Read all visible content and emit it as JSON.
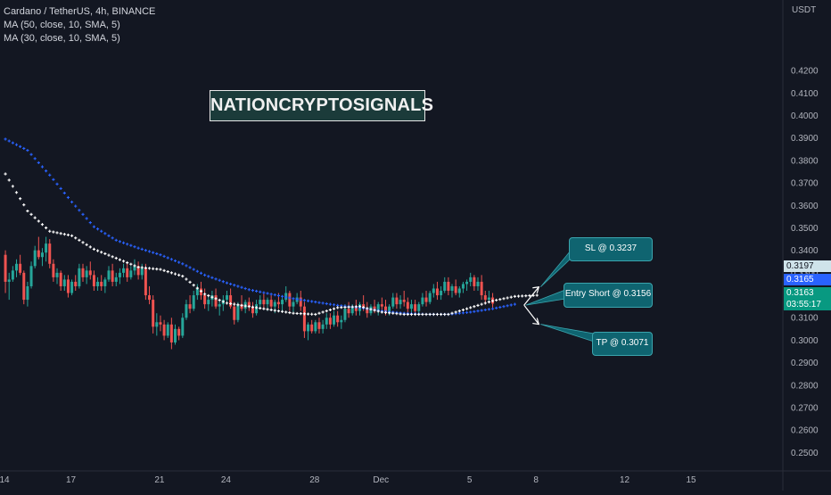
{
  "legend": {
    "symbol_line": "Cardano / TetherUS, 4h, BINANCE",
    "ma1_line": "MA (50, close, 10, SMA, 5)",
    "ma2_line": "MA (30, close, 10, SMA, 5)"
  },
  "watermark": "NATIONCRYPTOSIGNALS",
  "callouts": {
    "sl": "SL @ 0.3237",
    "entry": "Entry Short @ 0.3156",
    "tp": "TP @ 0.3071"
  },
  "price_tags": {
    "ma_white": "0.3197",
    "ma_blue": "0.3165",
    "last_price": "0.3163",
    "countdown": "03:55:17"
  },
  "colors": {
    "background": "#131722",
    "bull": "#26a69a",
    "bear": "#ef5350",
    "ma_blue": "#2962ff",
    "ma_white": "#ffffff",
    "callout": "#0f6470"
  },
  "chart_data": {
    "type": "line",
    "title": "Cardano / TetherUS, 4h, BINANCE",
    "y_unit": "USDT",
    "ylim": [
      0.245,
      0.4395
    ],
    "yticks": [
      0.42,
      0.41,
      0.4,
      0.39,
      0.38,
      0.37,
      0.36,
      0.35,
      0.34,
      0.33,
      0.32,
      0.31,
      0.3,
      0.29,
      0.28,
      0.27,
      0.26,
      0.25
    ],
    "ytick_labels": [
      "0.4200",
      "0.4100",
      "0.4000",
      "0.3900",
      "0.3800",
      "0.3700",
      "0.3600",
      "0.3500",
      "0.3400",
      "0.3300",
      "0.3200",
      "0.3100",
      "0.3000",
      "0.2900",
      "0.2800",
      "0.2700",
      "0.2600",
      "0.2500"
    ],
    "xticks": [
      {
        "label": "14",
        "bar": 0
      },
      {
        "label": "17",
        "bar": 18
      },
      {
        "label": "21",
        "bar": 42
      },
      {
        "label": "24",
        "bar": 60
      },
      {
        "label": "28",
        "bar": 84
      },
      {
        "label": "Dec",
        "bar": 102
      },
      {
        "label": "5",
        "bar": 126
      },
      {
        "label": "8",
        "bar": 144
      },
      {
        "label": "12",
        "bar": 168
      },
      {
        "label": "15",
        "bar": 186
      }
    ],
    "series": [
      {
        "name": "MA (50, close, 10, SMA, 5)",
        "color": "#2962ff",
        "points": [
          [
            0,
            0.3895
          ],
          [
            6,
            0.3845
          ],
          [
            12,
            0.3735
          ],
          [
            18,
            0.3615
          ],
          [
            24,
            0.3505
          ],
          [
            30,
            0.3445
          ],
          [
            36,
            0.341
          ],
          [
            42,
            0.338
          ],
          [
            48,
            0.334
          ],
          [
            54,
            0.329
          ],
          [
            60,
            0.3255
          ],
          [
            66,
            0.3225
          ],
          [
            72,
            0.3205
          ],
          [
            78,
            0.3185
          ],
          [
            84,
            0.317
          ],
          [
            90,
            0.3155
          ],
          [
            96,
            0.3145
          ],
          [
            102,
            0.313
          ],
          [
            108,
            0.312
          ],
          [
            114,
            0.3115
          ],
          [
            120,
            0.3115
          ],
          [
            126,
            0.3125
          ],
          [
            132,
            0.314
          ],
          [
            138,
            0.316
          ]
        ]
      },
      {
        "name": "MA (30, close, 10, SMA, 5)",
        "color": "#ffffff",
        "points": [
          [
            0,
            0.374
          ],
          [
            6,
            0.3575
          ],
          [
            12,
            0.3485
          ],
          [
            18,
            0.3465
          ],
          [
            24,
            0.3405
          ],
          [
            30,
            0.3365
          ],
          [
            36,
            0.3325
          ],
          [
            42,
            0.3315
          ],
          [
            48,
            0.3285
          ],
          [
            54,
            0.3205
          ],
          [
            60,
            0.3165
          ],
          [
            66,
            0.315
          ],
          [
            72,
            0.3135
          ],
          [
            78,
            0.312
          ],
          [
            84,
            0.3115
          ],
          [
            90,
            0.3145
          ],
          [
            96,
            0.315
          ],
          [
            102,
            0.3125
          ],
          [
            108,
            0.3115
          ],
          [
            114,
            0.3115
          ],
          [
            120,
            0.3115
          ],
          [
            126,
            0.3145
          ],
          [
            132,
            0.3175
          ],
          [
            138,
            0.3195
          ],
          [
            144,
            0.32
          ]
        ]
      }
    ],
    "candles": [
      [
        0.338,
        0.34,
        0.321,
        0.326
      ],
      [
        0.326,
        0.33,
        0.318,
        0.327
      ],
      [
        0.327,
        0.333,
        0.326,
        0.331
      ],
      [
        0.331,
        0.336,
        0.328,
        0.334
      ],
      [
        0.334,
        0.338,
        0.329,
        0.33
      ],
      [
        0.33,
        0.331,
        0.316,
        0.318
      ],
      [
        0.318,
        0.326,
        0.315,
        0.324
      ],
      [
        0.324,
        0.335,
        0.323,
        0.333
      ],
      [
        0.333,
        0.342,
        0.332,
        0.34
      ],
      [
        0.34,
        0.346,
        0.336,
        0.337
      ],
      [
        0.337,
        0.341,
        0.333,
        0.339
      ],
      [
        0.339,
        0.346,
        0.335,
        0.343
      ],
      [
        0.343,
        0.345,
        0.332,
        0.334
      ],
      [
        0.334,
        0.336,
        0.326,
        0.328
      ],
      [
        0.328,
        0.332,
        0.325,
        0.33
      ],
      [
        0.33,
        0.331,
        0.322,
        0.324
      ],
      [
        0.324,
        0.329,
        0.322,
        0.327
      ],
      [
        0.327,
        0.329,
        0.319,
        0.321
      ],
      [
        0.321,
        0.327,
        0.32,
        0.326
      ],
      [
        0.326,
        0.329,
        0.322,
        0.324
      ],
      [
        0.324,
        0.334,
        0.323,
        0.332
      ],
      [
        0.332,
        0.334,
        0.326,
        0.328
      ],
      [
        0.328,
        0.333,
        0.325,
        0.331
      ],
      [
        0.331,
        0.335,
        0.327,
        0.329
      ],
      [
        0.329,
        0.331,
        0.322,
        0.324
      ],
      [
        0.324,
        0.328,
        0.322,
        0.326
      ],
      [
        0.326,
        0.329,
        0.322,
        0.324
      ],
      [
        0.324,
        0.328,
        0.321,
        0.327
      ],
      [
        0.327,
        0.333,
        0.326,
        0.331
      ],
      [
        0.331,
        0.334,
        0.324,
        0.326
      ],
      [
        0.326,
        0.33,
        0.324,
        0.328
      ],
      [
        0.328,
        0.332,
        0.325,
        0.33
      ],
      [
        0.33,
        0.334,
        0.328,
        0.332
      ],
      [
        0.332,
        0.334,
        0.326,
        0.328
      ],
      [
        0.328,
        0.333,
        0.327,
        0.331
      ],
      [
        0.331,
        0.336,
        0.329,
        0.333
      ],
      [
        0.333,
        0.335,
        0.327,
        0.329
      ],
      [
        0.329,
        0.334,
        0.327,
        0.332
      ],
      [
        0.332,
        0.334,
        0.318,
        0.32
      ],
      [
        0.32,
        0.324,
        0.316,
        0.318
      ],
      [
        0.318,
        0.32,
        0.303,
        0.306
      ],
      [
        0.306,
        0.312,
        0.302,
        0.308
      ],
      [
        0.308,
        0.311,
        0.304,
        0.307
      ],
      [
        0.307,
        0.309,
        0.3,
        0.302
      ],
      [
        0.302,
        0.308,
        0.301,
        0.307
      ],
      [
        0.307,
        0.31,
        0.296,
        0.299
      ],
      [
        0.299,
        0.307,
        0.298,
        0.305
      ],
      [
        0.305,
        0.306,
        0.3,
        0.302
      ],
      [
        0.302,
        0.312,
        0.301,
        0.31
      ],
      [
        0.31,
        0.318,
        0.309,
        0.316
      ],
      [
        0.316,
        0.32,
        0.312,
        0.314
      ],
      [
        0.314,
        0.322,
        0.313,
        0.32
      ],
      [
        0.32,
        0.325,
        0.318,
        0.323
      ],
      [
        0.323,
        0.326,
        0.318,
        0.32
      ],
      [
        0.32,
        0.323,
        0.314,
        0.316
      ],
      [
        0.316,
        0.32,
        0.313,
        0.318
      ],
      [
        0.318,
        0.322,
        0.315,
        0.32
      ],
      [
        0.32,
        0.323,
        0.314,
        0.315
      ],
      [
        0.315,
        0.318,
        0.311,
        0.316
      ],
      [
        0.316,
        0.32,
        0.313,
        0.318
      ],
      [
        0.318,
        0.322,
        0.317,
        0.32
      ],
      [
        0.32,
        0.323,
        0.314,
        0.315
      ],
      [
        0.315,
        0.317,
        0.307,
        0.309
      ],
      [
        0.309,
        0.317,
        0.308,
        0.316
      ],
      [
        0.316,
        0.32,
        0.313,
        0.314
      ],
      [
        0.314,
        0.318,
        0.312,
        0.317
      ],
      [
        0.317,
        0.319,
        0.313,
        0.315
      ],
      [
        0.315,
        0.317,
        0.31,
        0.312
      ],
      [
        0.312,
        0.318,
        0.311,
        0.316
      ],
      [
        0.316,
        0.32,
        0.314,
        0.318
      ],
      [
        0.318,
        0.321,
        0.314,
        0.316
      ],
      [
        0.316,
        0.319,
        0.313,
        0.318
      ],
      [
        0.318,
        0.32,
        0.314,
        0.315
      ],
      [
        0.315,
        0.318,
        0.312,
        0.317
      ],
      [
        0.317,
        0.321,
        0.314,
        0.316
      ],
      [
        0.316,
        0.319,
        0.313,
        0.318
      ],
      [
        0.318,
        0.324,
        0.317,
        0.321
      ],
      [
        0.321,
        0.322,
        0.313,
        0.315
      ],
      [
        0.315,
        0.318,
        0.312,
        0.317
      ],
      [
        0.317,
        0.321,
        0.316,
        0.319
      ],
      [
        0.319,
        0.322,
        0.313,
        0.315
      ],
      [
        0.315,
        0.317,
        0.301,
        0.304
      ],
      [
        0.304,
        0.308,
        0.3,
        0.307
      ],
      [
        0.307,
        0.309,
        0.303,
        0.304
      ],
      [
        0.304,
        0.309,
        0.303,
        0.308
      ],
      [
        0.308,
        0.31,
        0.303,
        0.305
      ],
      [
        0.305,
        0.309,
        0.303,
        0.307
      ],
      [
        0.307,
        0.312,
        0.305,
        0.31
      ],
      [
        0.31,
        0.312,
        0.305,
        0.307
      ],
      [
        0.307,
        0.313,
        0.306,
        0.311
      ],
      [
        0.311,
        0.313,
        0.306,
        0.308
      ],
      [
        0.308,
        0.311,
        0.305,
        0.309
      ],
      [
        0.309,
        0.316,
        0.308,
        0.314
      ],
      [
        0.314,
        0.317,
        0.31,
        0.312
      ],
      [
        0.312,
        0.316,
        0.311,
        0.315
      ],
      [
        0.315,
        0.318,
        0.311,
        0.313
      ],
      [
        0.313,
        0.317,
        0.311,
        0.316
      ],
      [
        0.316,
        0.32,
        0.313,
        0.314
      ],
      [
        0.314,
        0.317,
        0.31,
        0.312
      ],
      [
        0.312,
        0.316,
        0.311,
        0.315
      ],
      [
        0.315,
        0.318,
        0.312,
        0.313
      ],
      [
        0.313,
        0.317,
        0.311,
        0.316
      ],
      [
        0.316,
        0.319,
        0.313,
        0.315
      ],
      [
        0.315,
        0.318,
        0.311,
        0.312
      ],
      [
        0.312,
        0.316,
        0.311,
        0.315
      ],
      [
        0.315,
        0.321,
        0.314,
        0.319
      ],
      [
        0.319,
        0.321,
        0.314,
        0.316
      ],
      [
        0.316,
        0.32,
        0.314,
        0.318
      ],
      [
        0.318,
        0.322,
        0.315,
        0.317
      ],
      [
        0.317,
        0.319,
        0.312,
        0.314
      ],
      [
        0.314,
        0.318,
        0.312,
        0.316
      ],
      [
        0.316,
        0.318,
        0.311,
        0.313
      ],
      [
        0.313,
        0.317,
        0.312,
        0.316
      ],
      [
        0.316,
        0.321,
        0.315,
        0.319
      ],
      [
        0.319,
        0.322,
        0.315,
        0.317
      ],
      [
        0.317,
        0.322,
        0.316,
        0.321
      ],
      [
        0.321,
        0.325,
        0.319,
        0.323
      ],
      [
        0.323,
        0.326,
        0.318,
        0.32
      ],
      [
        0.32,
        0.324,
        0.318,
        0.322
      ],
      [
        0.322,
        0.328,
        0.321,
        0.326
      ],
      [
        0.326,
        0.328,
        0.32,
        0.322
      ],
      [
        0.322,
        0.325,
        0.319,
        0.324
      ],
      [
        0.324,
        0.327,
        0.32,
        0.321
      ],
      [
        0.321,
        0.324,
        0.319,
        0.323
      ],
      [
        0.323,
        0.326,
        0.321,
        0.325
      ],
      [
        0.325,
        0.327,
        0.322,
        0.326
      ],
      [
        0.326,
        0.33,
        0.324,
        0.328
      ],
      [
        0.328,
        0.329,
        0.322,
        0.324
      ],
      [
        0.324,
        0.328,
        0.322,
        0.326
      ],
      [
        0.326,
        0.329,
        0.318,
        0.32
      ],
      [
        0.32,
        0.322,
        0.316,
        0.318
      ],
      [
        0.318,
        0.322,
        0.317,
        0.319
      ],
      [
        0.319,
        0.321,
        0.314,
        0.3163
      ]
    ],
    "trade_plan": {
      "stop_loss": 0.3237,
      "entry_short": 0.3156,
      "take_profit": 0.3071
    },
    "last_price": 0.3163
  }
}
